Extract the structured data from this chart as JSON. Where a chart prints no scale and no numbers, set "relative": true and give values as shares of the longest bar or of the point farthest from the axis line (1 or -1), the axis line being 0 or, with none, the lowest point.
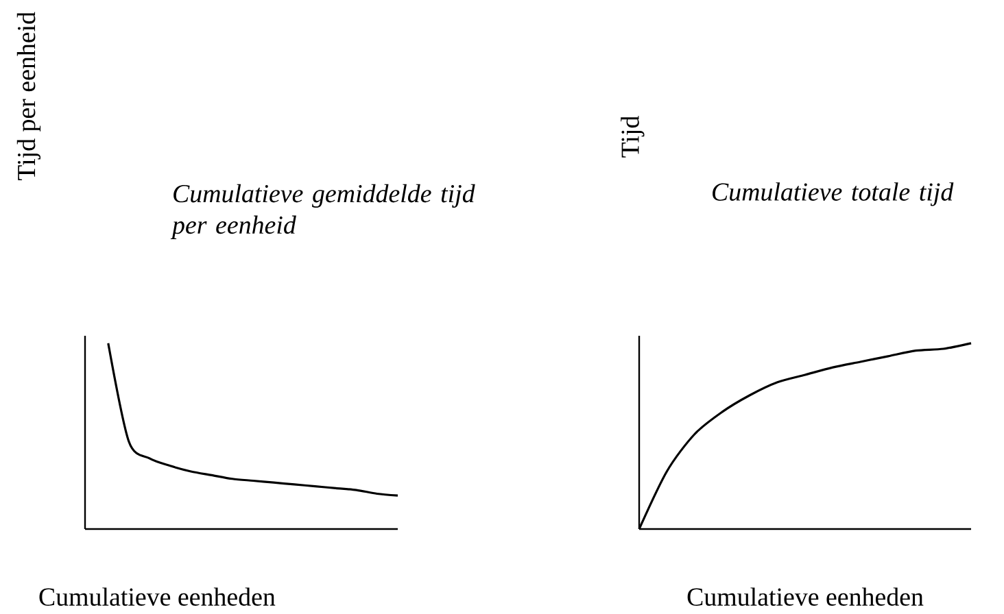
{
  "chart_data": [
    {
      "type": "line",
      "relative": true,
      "title": "Cumulatieve gemiddelde tijd per eenheid",
      "xlabel": "Cumulatieve eenheden",
      "ylabel": "Tijd per eenheid",
      "color": "#000000",
      "categories": [
        null,
        null,
        null,
        null,
        null,
        null,
        null,
        null,
        null,
        null,
        null,
        null,
        null,
        null,
        null
      ],
      "values": [
        1.0,
        0.47,
        0.38,
        0.34,
        0.31,
        0.29,
        0.27,
        0.26,
        0.25,
        0.24,
        0.23,
        0.22,
        0.21,
        0.19,
        0.18
      ]
    },
    {
      "type": "line",
      "relative": true,
      "title": "Cumulatieve totale tijd",
      "xlabel": "Cumulatieve eenheden",
      "ylabel": "Tijd",
      "color": "#000000",
      "categories": [
        null,
        null,
        null,
        null,
        null,
        null,
        null,
        null,
        null,
        null,
        null,
        null,
        null
      ],
      "values": [
        0.0,
        0.31,
        0.51,
        0.63,
        0.72,
        0.79,
        0.83,
        0.87,
        0.9,
        0.93,
        0.96,
        0.97,
        1.0
      ]
    }
  ]
}
